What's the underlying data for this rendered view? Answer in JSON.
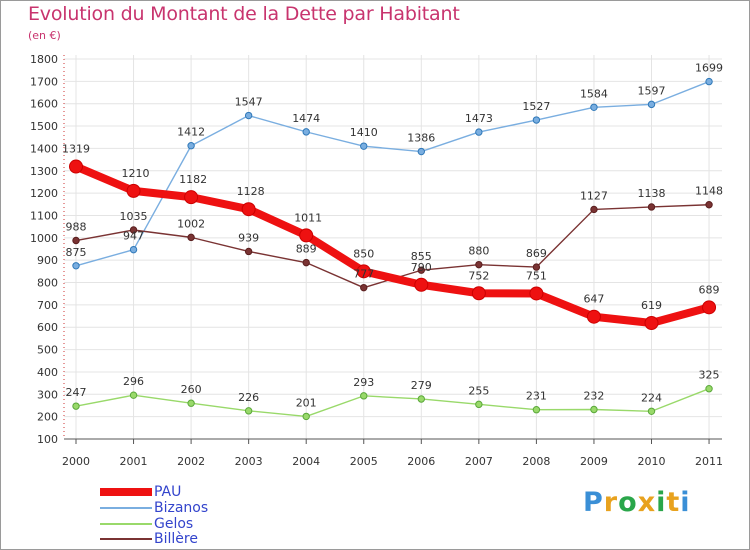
{
  "title": "Evolution du Montant de la Dette par Habitant",
  "subtitle": "(en €)",
  "logo": {
    "text": "Proxiti",
    "colors": [
      "#3a8fd6",
      "#e8a21e",
      "#2aa64a",
      "#e8a21e",
      "#2aa64a",
      "#e8a21e",
      "#3a8fd6"
    ]
  },
  "chart_data": {
    "type": "line",
    "title": "Evolution du Montant de la Dette par Habitant",
    "ylabel": "(en €)",
    "xlabel": "",
    "categories": [
      "2000",
      "2001",
      "2002",
      "2003",
      "2004",
      "2005",
      "2006",
      "2007",
      "2008",
      "2009",
      "2010",
      "2011"
    ],
    "ylim": [
      100,
      1800
    ],
    "yticks": [
      100,
      200,
      300,
      400,
      500,
      600,
      700,
      800,
      900,
      1000,
      1100,
      1200,
      1300,
      1400,
      1500,
      1600,
      1700,
      1800
    ],
    "grid": true,
    "legend_position": "bottom-left",
    "series": [
      {
        "name": "PAU",
        "color": "#ee1111",
        "values": [
          1319,
          1210,
          1182,
          1128,
          1011,
          850,
          790,
          752,
          751,
          647,
          619,
          689
        ]
      },
      {
        "name": "Bizanos",
        "color": "#7aaee0",
        "values": [
          875,
          947,
          1412,
          1547,
          1474,
          1410,
          1386,
          1473,
          1527,
          1584,
          1597,
          1699
        ]
      },
      {
        "name": "Gelos",
        "color": "#99d96a",
        "values": [
          247,
          296,
          260,
          226,
          201,
          293,
          279,
          255,
          231,
          232,
          224,
          325
        ]
      },
      {
        "name": "Billère",
        "color": "#7a3333",
        "values": [
          988,
          1035,
          1002,
          939,
          889,
          777,
          855,
          880,
          869,
          1127,
          1138,
          1148
        ]
      }
    ]
  }
}
